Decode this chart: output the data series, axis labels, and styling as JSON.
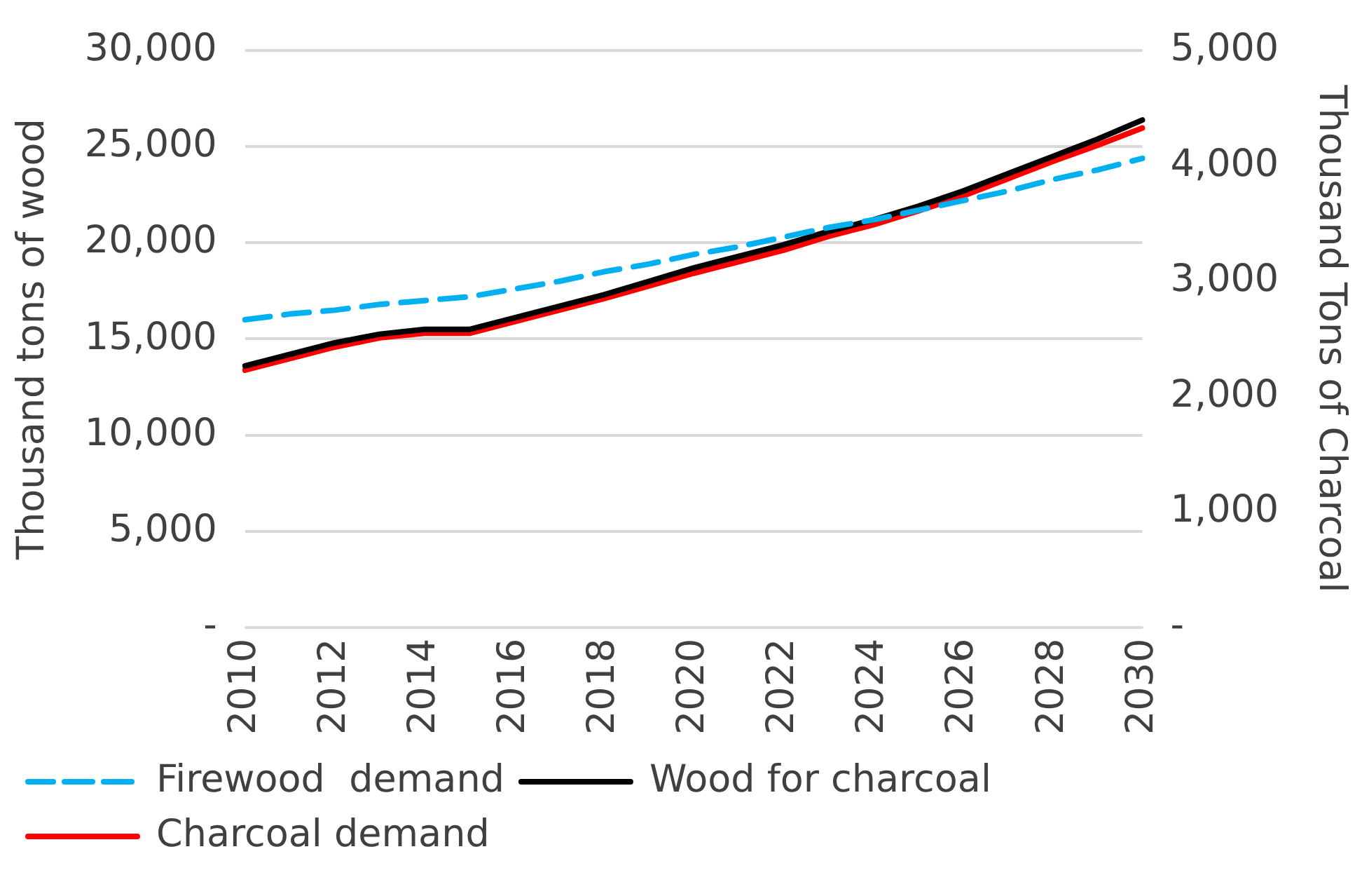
{
  "chart_data": {
    "type": "line",
    "ylabel": "Thousand tons of wood",
    "y2label": "Thousand Tons of Charcoal",
    "categories": [
      "2010",
      null,
      "2012",
      null,
      "2014",
      null,
      "2016",
      null,
      "2018",
      null,
      "2020",
      null,
      "2022",
      null,
      "2024",
      null,
      "2026",
      null,
      "2028",
      null,
      "2030"
    ],
    "series": [
      {
        "name": "Firewood  demand",
        "color": "#00b0f0",
        "line_style": "dashed",
        "values": [
          16000,
          16300,
          16500,
          16800,
          17000,
          17200,
          17600,
          18000,
          18500,
          18900,
          19400,
          19800,
          20300,
          20800,
          21200,
          21700,
          22200,
          22700,
          23300,
          23800,
          24400
        ]
      },
      {
        "name": "Wood for charcoal",
        "color": "#000000",
        "line_style": "solid",
        "values": [
          13600,
          14200,
          14800,
          15250,
          15500,
          15500,
          16100,
          16700,
          17300,
          18000,
          18700,
          19300,
          19900,
          20600,
          21200,
          21900,
          22700,
          23600,
          24500,
          25400,
          26400
        ]
      },
      {
        "name": "Charcoal demand",
        "color": "#ff0000",
        "line_style": "solid",
        "axis": "y2",
        "values": [
          2230,
          2330,
          2430,
          2510,
          2550,
          2550,
          2650,
          2750,
          2850,
          2960,
          3070,
          3170,
          3270,
          3390,
          3490,
          3610,
          3740,
          3890,
          4040,
          4180,
          4330
        ]
      }
    ],
    "ylim": [
      0,
      30000
    ],
    "yticks": [
      {
        "value": 0,
        "label": "-"
      },
      {
        "value": 5000,
        "label": "5,000"
      },
      {
        "value": 10000,
        "label": "10,000"
      },
      {
        "value": 15000,
        "label": "15,000"
      },
      {
        "value": 20000,
        "label": "20,000"
      },
      {
        "value": 25000,
        "label": "25,000"
      },
      {
        "value": 30000,
        "label": "30,000"
      }
    ],
    "y2lim": [
      0,
      5000
    ],
    "y2ticks": [
      {
        "value": 0,
        "label": "-"
      },
      {
        "value": 1000,
        "label": "1,000"
      },
      {
        "value": 2000,
        "label": "2,000"
      },
      {
        "value": 3000,
        "label": "3,000"
      },
      {
        "value": 4000,
        "label": "4,000"
      },
      {
        "value": 5000,
        "label": "5,000"
      }
    ],
    "grid": "y",
    "legend": "bottom",
    "marker": "none"
  }
}
